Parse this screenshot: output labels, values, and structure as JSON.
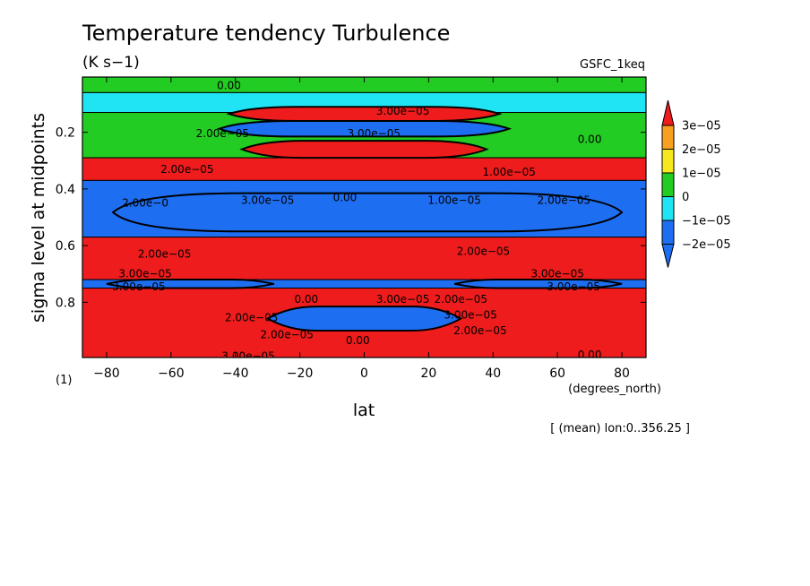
{
  "chart_data": {
    "type": "heatmap",
    "title": "Temperature tendency Turbulence",
    "units": "(K s−1)",
    "dataset": "GSFC_1keq",
    "xlabel": "lat",
    "xunits": "(degrees_north)",
    "ylabel": "sigma level at midpoints",
    "yunits": "(1)",
    "footer": "[ (mean) lon:0..356.25 ]",
    "xlim": [
      -87.5,
      87.5
    ],
    "ylim": [
      0.995,
      0.005
    ],
    "x_ticks": [
      -80,
      -60,
      -40,
      -20,
      0,
      20,
      40,
      60,
      80
    ],
    "x_tick_labels": [
      "−80",
      "−60",
      "−40",
      "−20",
      "0",
      "20",
      "40",
      "60",
      "80"
    ],
    "y_ticks": [
      0.2,
      0.4,
      0.6,
      0.8
    ],
    "y_tick_labels": [
      "0.2",
      "0.4",
      "0.6",
      "0.8"
    ],
    "colorbar": {
      "levels": [
        3e-05,
        2e-05,
        1e-05,
        0,
        -1e-05,
        -2e-05
      ],
      "labels": [
        "3e−05",
        "2e−05",
        "1e−05",
        "0",
        "−1e−05",
        "−2e−05"
      ],
      "colors": [
        "#ee1c1c",
        "#f7a020",
        "#f6e81c",
        "#22cc22",
        "#20e4f4",
        "#1e6ef2"
      ]
    },
    "bands": [
      {
        "y0": 0.005,
        "y1": 0.06,
        "value": 5e-06,
        "level_index": 3
      },
      {
        "y0": 0.06,
        "y1": 0.13,
        "value": -1e-05,
        "level_index": 4
      },
      {
        "y0": 0.13,
        "y1": 0.29,
        "value": 5e-06,
        "level_index": 3
      },
      {
        "y0": 0.29,
        "y1": 0.37,
        "value": 3e-05,
        "level_index": 0
      },
      {
        "y0": 0.37,
        "y1": 0.57,
        "value": -2e-05,
        "level_index": 5
      },
      {
        "y0": 0.57,
        "y1": 0.72,
        "value": 3e-05,
        "level_index": 0
      },
      {
        "y0": 0.72,
        "y1": 0.75,
        "value": -2e-05,
        "level_index": 5
      },
      {
        "y0": 0.75,
        "y1": 0.995,
        "value": 3e-05,
        "level_index": 0
      }
    ],
    "features": [
      {
        "lat0": -42,
        "lat1": 42,
        "y0": 0.11,
        "y1": 0.16,
        "value": 3e-05,
        "level_index": 0
      },
      {
        "lat0": -45,
        "lat1": 45,
        "y0": 0.16,
        "y1": 0.215,
        "value": -2e-05,
        "level_index": 5
      },
      {
        "lat0": -38,
        "lat1": 38,
        "y0": 0.23,
        "y1": 0.29,
        "value": 3e-05,
        "level_index": 0
      },
      {
        "lat0": -78,
        "lat1": 80,
        "y0": 0.415,
        "y1": 0.55,
        "value": -2e-05,
        "level_index": 5
      },
      {
        "lat0": -30,
        "lat1": 30,
        "y0": 0.815,
        "y1": 0.9,
        "value": -2e-05,
        "level_index": 5
      },
      {
        "lat0": -80,
        "lat1": -28,
        "y0": 0.72,
        "y1": 0.75,
        "value": -2e-05,
        "level_index": 5
      },
      {
        "lat0": 28,
        "lat1": 80,
        "y0": 0.72,
        "y1": 0.75,
        "value": -2e-05,
        "level_index": 5
      }
    ],
    "contour_labels": [
      {
        "text": "0.00",
        "lat": -42,
        "y": 0.035
      },
      {
        "text": "3.00e−05",
        "lat": 12,
        "y": 0.125
      },
      {
        "text": "3.00e−05",
        "lat": 3,
        "y": 0.205
      },
      {
        "text": "2.00e−05",
        "lat": -44,
        "y": 0.205
      },
      {
        "text": "0.00",
        "lat": 70,
        "y": 0.225
      },
      {
        "text": "2.00e−05",
        "lat": -55,
        "y": 0.33
      },
      {
        "text": "1.00e−05",
        "lat": 45,
        "y": 0.34
      },
      {
        "text": "2.00e−0",
        "lat": -68,
        "y": 0.45
      },
      {
        "text": "3.00e−05",
        "lat": -30,
        "y": 0.44
      },
      {
        "text": "0.00",
        "lat": -6,
        "y": 0.43
      },
      {
        "text": "1.00e−05",
        "lat": 28,
        "y": 0.44
      },
      {
        "text": "2.00e−05",
        "lat": 62,
        "y": 0.44
      },
      {
        "text": "2.00e−05",
        "lat": -62,
        "y": 0.63
      },
      {
        "text": "2.00e−05",
        "lat": 37,
        "y": 0.62
      },
      {
        "text": "3.00e−05",
        "lat": -68,
        "y": 0.7
      },
      {
        "text": "3.00e−05",
        "lat": 60,
        "y": 0.7
      },
      {
        "text": "3.00e−05",
        "lat": -70,
        "y": 0.745
      },
      {
        "text": "3.00e−05",
        "lat": 65,
        "y": 0.745
      },
      {
        "text": "0.00",
        "lat": -18,
        "y": 0.79
      },
      {
        "text": "3.00e−05",
        "lat": 12,
        "y": 0.79
      },
      {
        "text": "2.00e−05",
        "lat": 30,
        "y": 0.79
      },
      {
        "text": "3.00e−05",
        "lat": 33,
        "y": 0.845
      },
      {
        "text": "2.00e−05",
        "lat": -35,
        "y": 0.855
      },
      {
        "text": "2.00e−05",
        "lat": 36,
        "y": 0.9
      },
      {
        "text": "2.00e−05",
        "lat": -24,
        "y": 0.915
      },
      {
        "text": "0.00",
        "lat": -2,
        "y": 0.935
      },
      {
        "text": "0.00",
        "lat": 70,
        "y": 0.985
      },
      {
        "text": "3.00e−05",
        "lat": -36,
        "y": 0.99
      }
    ]
  }
}
